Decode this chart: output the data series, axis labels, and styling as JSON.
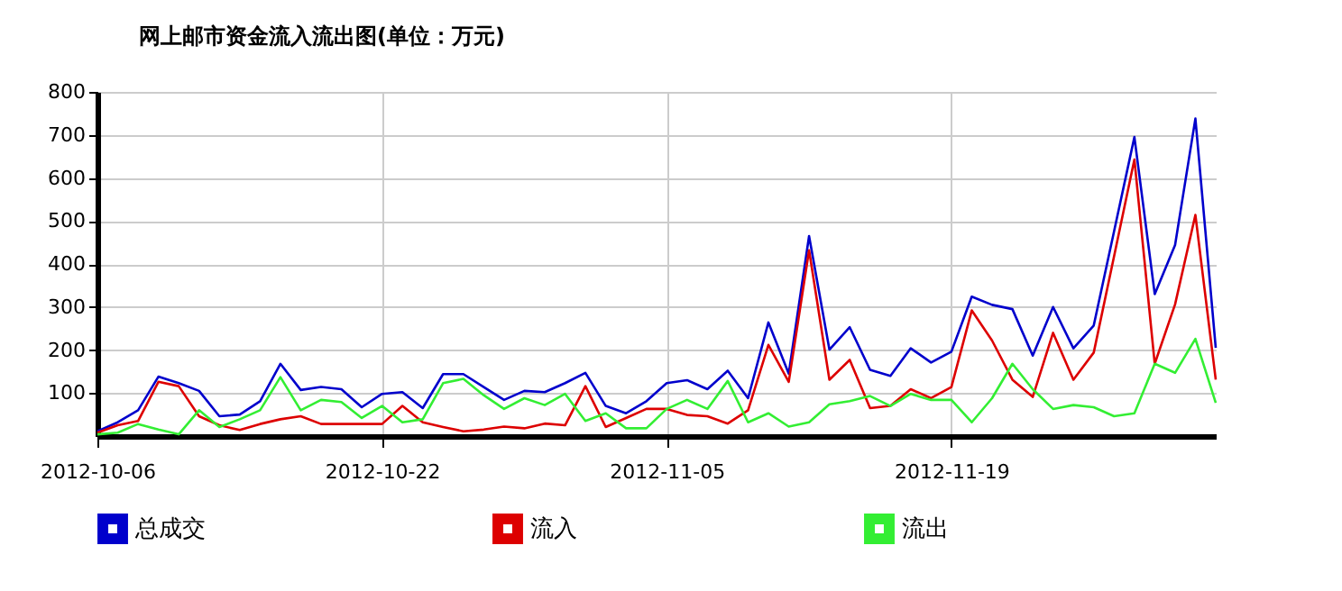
{
  "chart_data": {
    "type": "line",
    "title": "网上邮市资金流入流出图(单位：万元)",
    "categories": [
      "2012-10-06",
      null,
      null,
      null,
      null,
      null,
      null,
      null,
      null,
      null,
      null,
      null,
      null,
      null,
      "2012-10-22",
      null,
      null,
      null,
      null,
      null,
      null,
      null,
      null,
      null,
      null,
      null,
      null,
      null,
      "2012-11-05",
      null,
      null,
      null,
      null,
      null,
      null,
      null,
      null,
      null,
      null,
      null,
      null,
      null,
      "2012-11-19",
      null,
      null,
      null,
      null,
      null,
      null,
      null,
      null,
      null,
      null,
      null,
      null,
      null
    ],
    "series": [
      {
        "name": "总成交",
        "color": "#0000cc",
        "values": [
          11,
          32,
          60,
          138,
          123,
          105,
          46,
          50,
          81,
          168,
          107,
          114,
          109,
          67,
          98,
          102,
          65,
          144,
          144,
          114,
          84,
          105,
          102,
          123,
          147,
          70,
          53,
          81,
          123,
          130,
          109,
          152,
          88,
          264,
          145,
          465,
          201,
          253,
          154,
          140,
          204,
          171,
          196,
          324,
          305,
          295,
          187,
          300,
          204,
          257,
          476,
          695,
          330,
          444,
          738,
          205
        ]
      },
      {
        "name": "流入",
        "color": "#dd0000",
        "values": [
          8,
          25,
          35,
          126,
          116,
          46,
          25,
          14,
          28,
          39,
          46,
          28,
          28,
          28,
          28,
          70,
          32,
          21,
          11,
          15,
          22,
          18,
          29,
          25,
          116,
          21,
          42,
          63,
          63,
          49,
          46,
          29,
          60,
          212,
          126,
          432,
          131,
          177,
          65,
          70,
          109,
          88,
          114,
          292,
          222,
          131,
          91,
          240,
          131,
          194,
          418,
          643,
          168,
          306,
          514,
          131
        ]
      },
      {
        "name": "流出",
        "color": "#33ee33",
        "values": [
          4,
          8,
          28,
          15,
          4,
          60,
          21,
          39,
          60,
          137,
          60,
          84,
          79,
          42,
          70,
          32,
          39,
          123,
          133,
          95,
          63,
          88,
          72,
          98,
          35,
          53,
          18,
          18,
          63,
          84,
          63,
          128,
          32,
          53,
          22,
          32,
          74,
          81,
          93,
          70,
          98,
          84,
          84,
          32,
          88,
          168,
          109,
          63,
          72,
          67,
          46,
          53,
          168,
          147,
          226,
          77
        ]
      }
    ],
    "ylim": [
      0,
      800
    ],
    "yticks": [
      100,
      200,
      300,
      400,
      500,
      600,
      700,
      800
    ],
    "grid": true,
    "legend": "bottom",
    "marker": "none",
    "line_style": "solid"
  }
}
